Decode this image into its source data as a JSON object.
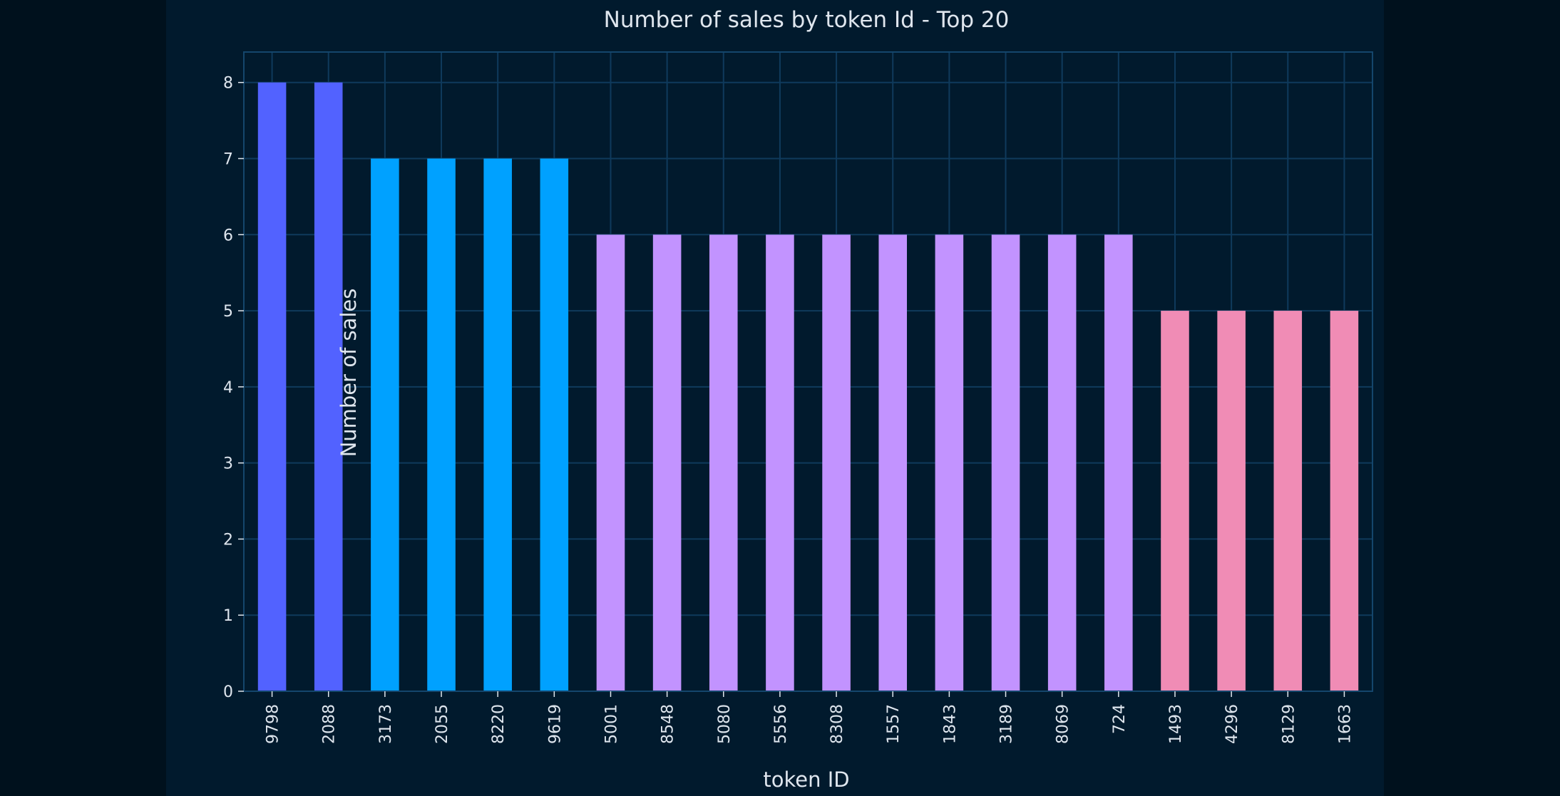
{
  "chart_data": {
    "type": "bar",
    "title": "Number of sales by token Id - Top 20",
    "xlabel": "token ID",
    "ylabel": "Number of sales",
    "categories": [
      "9798",
      "2088",
      "3173",
      "2055",
      "8220",
      "9619",
      "5001",
      "8548",
      "5080",
      "5556",
      "8308",
      "1557",
      "1843",
      "3189",
      "8069",
      "724",
      "1493",
      "4296",
      "8129",
      "1663"
    ],
    "values": [
      8,
      8,
      7,
      7,
      7,
      7,
      6,
      6,
      6,
      6,
      6,
      6,
      6,
      6,
      6,
      6,
      5,
      5,
      5,
      5
    ],
    "bar_colors": [
      "#5262ff",
      "#5262ff",
      "#00a1ff",
      "#00a1ff",
      "#00a1ff",
      "#00a1ff",
      "#c293ff",
      "#c293ff",
      "#c293ff",
      "#c293ff",
      "#c293ff",
      "#c293ff",
      "#c293ff",
      "#c293ff",
      "#c293ff",
      "#c293ff",
      "#f08cb5",
      "#f08cb5",
      "#f08cb5",
      "#f08cb5"
    ],
    "yticks": [
      "0",
      "1",
      "2",
      "3",
      "4",
      "5",
      "6",
      "7",
      "8"
    ],
    "ylim": [
      0,
      8.4
    ],
    "grid": true,
    "colors": {
      "background": "#011a2d",
      "outer_background": "#00111d",
      "grid": "#0f3a5c",
      "text": "#dfe6ee"
    }
  }
}
